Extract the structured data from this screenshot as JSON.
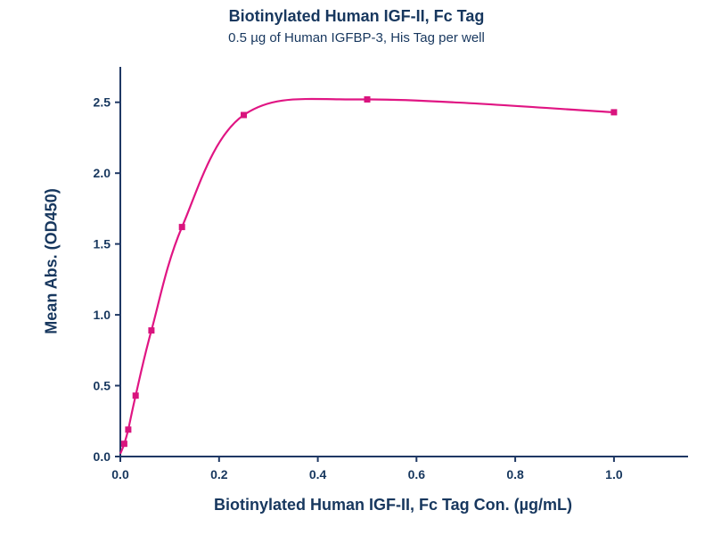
{
  "header": {
    "title": "Biotinylated Human IGF-II, Fc Tag",
    "subtitle": "0.5 µg of Human IGFBP-3, His Tag per well"
  },
  "chart_data": {
    "type": "line",
    "title": "Biotinylated Human IGF-II, Fc Tag",
    "subtitle": "0.5 µg of Human IGFBP-3, His Tag per well",
    "xlabel": "Biotinylated Human IGF-II, Fc Tag Con. (µg/mL)",
    "ylabel": "Mean Abs. (OD450)",
    "x": [
      0.008,
      0.016,
      0.031,
      0.063,
      0.125,
      0.25,
      0.5,
      1.0
    ],
    "y": [
      0.09,
      0.19,
      0.43,
      0.89,
      1.62,
      2.41,
      2.52,
      2.43
    ],
    "curve_start": [
      0.0,
      0.02
    ],
    "xticks": [
      0.0,
      0.2,
      0.4,
      0.6,
      0.8,
      1.0
    ],
    "yticks": [
      0.0,
      0.5,
      1.0,
      1.5,
      2.0,
      2.5
    ],
    "xlim": [
      0.0,
      1.15
    ],
    "ylim": [
      0.0,
      2.75
    ],
    "grid": false,
    "legend": "none",
    "marker": "square",
    "line_color": "#E01583",
    "marker_color": "#D9147E",
    "axis_color": "#1F3864",
    "text_color": "#17375E"
  }
}
